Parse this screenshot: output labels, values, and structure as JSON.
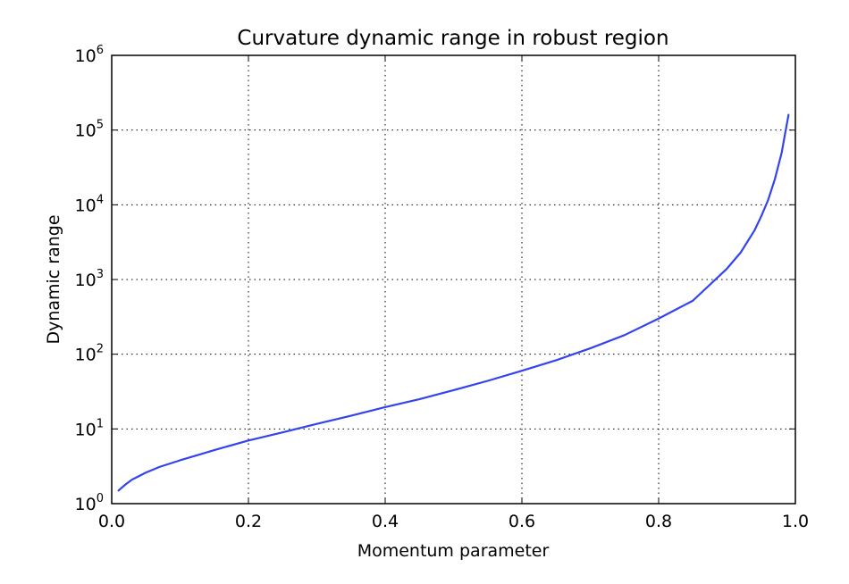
{
  "chart_data": {
    "type": "line",
    "title": "Curvature dynamic range in robust region",
    "xlabel": "Momentum parameter",
    "ylabel": "Dynamic range",
    "xlim": [
      0.0,
      1.0
    ],
    "ylim": [
      1,
      1000000
    ],
    "yscale": "log",
    "grid": true,
    "x_ticks": [
      {
        "value": 0.0,
        "label": "0.0"
      },
      {
        "value": 0.2,
        "label": "0.2"
      },
      {
        "value": 0.4,
        "label": "0.4"
      },
      {
        "value": 0.6,
        "label": "0.6"
      },
      {
        "value": 0.8,
        "label": "0.8"
      },
      {
        "value": 1.0,
        "label": "1.0"
      }
    ],
    "y_ticks": [
      {
        "value": 1,
        "base": "10",
        "exp": "0"
      },
      {
        "value": 10,
        "base": "10",
        "exp": "1"
      },
      {
        "value": 100,
        "base": "10",
        "exp": "2"
      },
      {
        "value": 1000,
        "base": "10",
        "exp": "3"
      },
      {
        "value": 10000,
        "base": "10",
        "exp": "4"
      },
      {
        "value": 100000,
        "base": "10",
        "exp": "5"
      },
      {
        "value": 1000000,
        "base": "10",
        "exp": "6"
      }
    ],
    "series": [
      {
        "color": "#3344ee",
        "x": [
          0.01,
          0.02,
          0.03,
          0.05,
          0.07,
          0.1,
          0.15,
          0.2,
          0.25,
          0.3,
          0.35,
          0.4,
          0.45,
          0.5,
          0.55,
          0.6,
          0.65,
          0.7,
          0.75,
          0.8,
          0.85,
          0.9,
          0.92,
          0.94,
          0.95,
          0.96,
          0.97,
          0.98,
          0.985,
          0.99
        ],
        "y": [
          1.5,
          1.8,
          2.1,
          2.6,
          3.1,
          3.8,
          5.2,
          7.0,
          9.0,
          11.7,
          15.0,
          19.6,
          25.0,
          33.0,
          44.0,
          60.0,
          83.0,
          120.0,
          180.0,
          300.0,
          520.0,
          1400.0,
          2300.0,
          4500.0,
          7000.0,
          11500.0,
          22000.0,
          50000.0,
          90000.0,
          160000.0
        ]
      }
    ]
  }
}
